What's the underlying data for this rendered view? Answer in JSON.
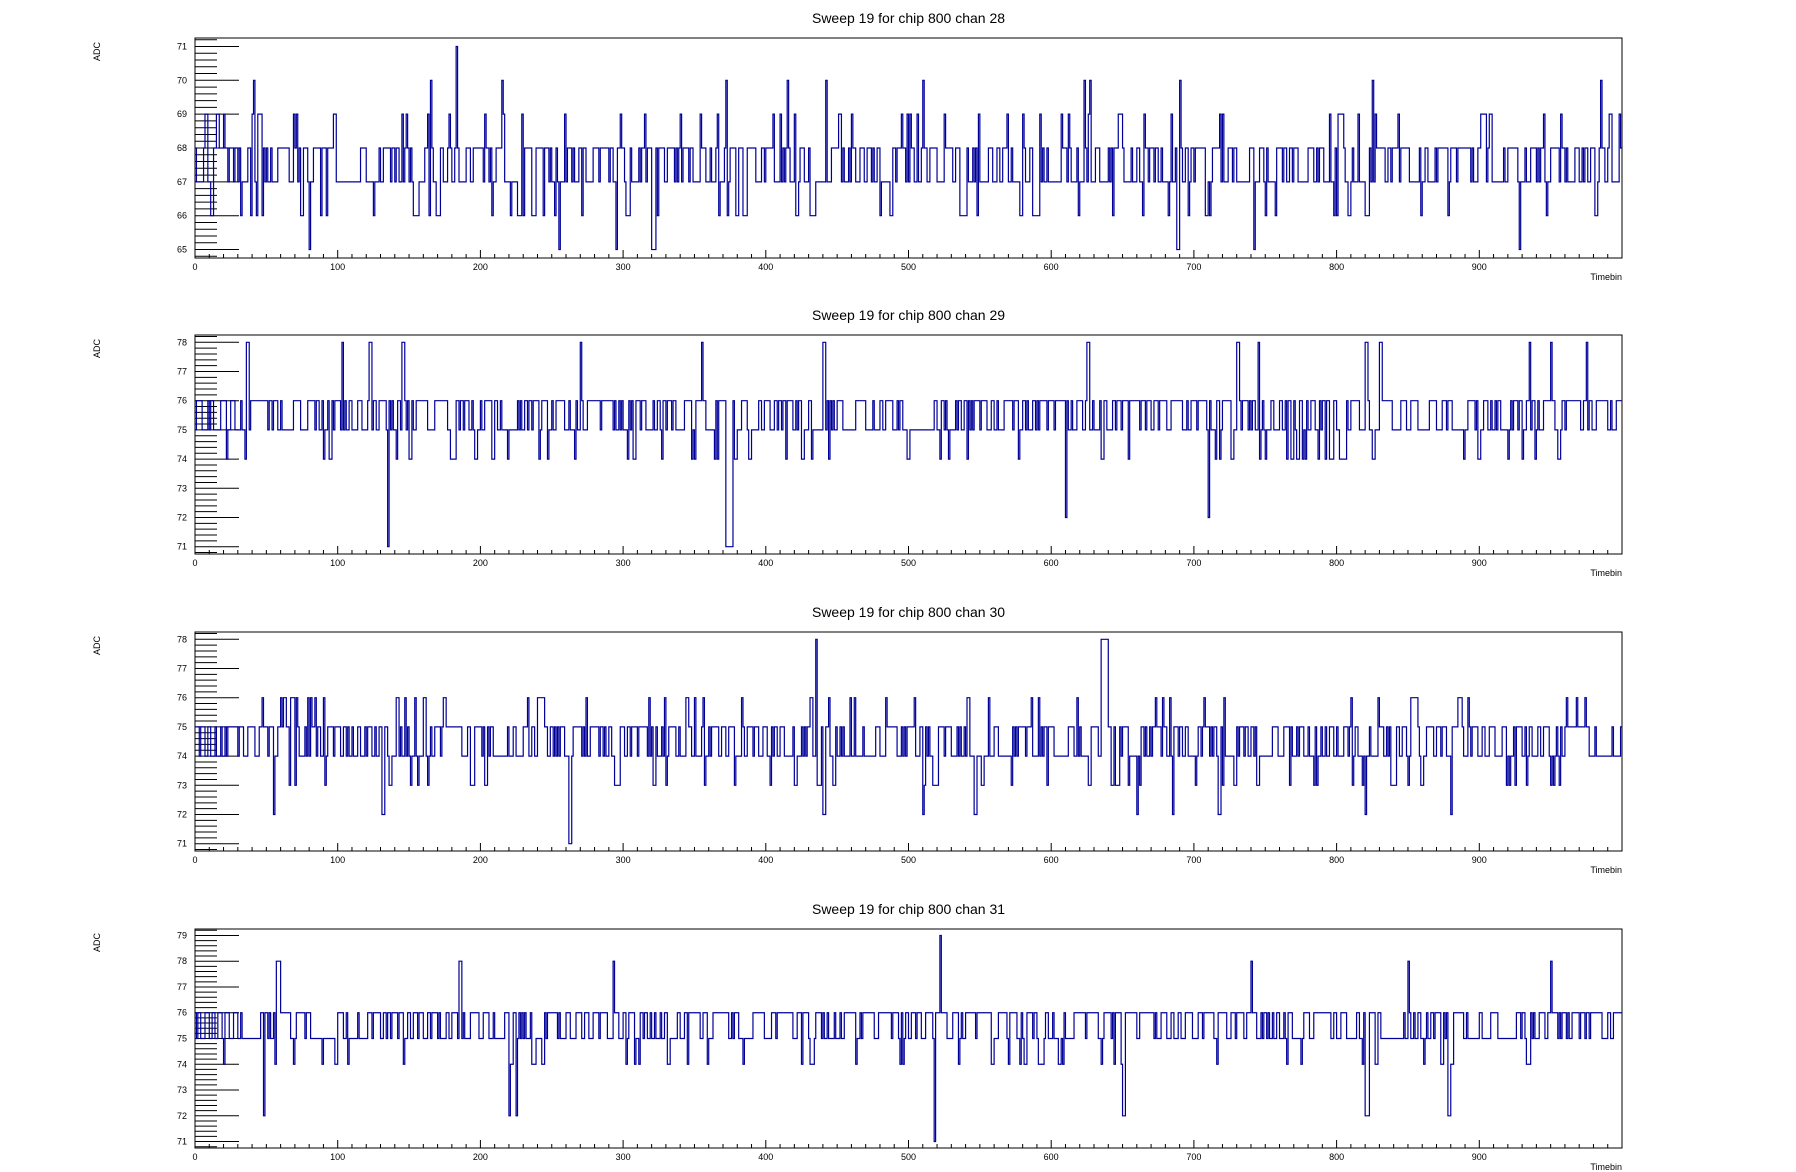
{
  "chart_data": [
    {
      "type": "line",
      "title": "Sweep 19 for chip 800 chan 28",
      "xlabel": "Timebin",
      "ylabel": "ADC",
      "xlim": [
        0,
        1000
      ],
      "ylim": [
        64.75,
        71.25
      ],
      "xticks": [
        "0",
        "100",
        "200",
        "300",
        "400",
        "500",
        "600",
        "700",
        "800",
        "900"
      ],
      "yticks": [
        "65",
        "66",
        "67",
        "68",
        "69",
        "70",
        "71"
      ],
      "series": [
        {
          "color": "#000099",
          "baseline": 67.5,
          "range": [
            65,
            71
          ],
          "spikes": [
            [
              41,
              70
            ],
            [
              80,
              65
            ],
            [
              165,
              70
            ],
            [
              183,
              71
            ],
            [
              215,
              70
            ],
            [
              255,
              65
            ],
            [
              295,
              65
            ],
            [
              320,
              65
            ],
            [
              372,
              70
            ],
            [
              415,
              70
            ],
            [
              442,
              70
            ],
            [
              510,
              70
            ],
            [
              623,
              70
            ],
            [
              627,
              70
            ],
            [
              688,
              65
            ],
            [
              690,
              70
            ],
            [
              742,
              65
            ],
            [
              825,
              70
            ],
            [
              928,
              65
            ],
            [
              985,
              70
            ]
          ]
        }
      ]
    },
    {
      "type": "line",
      "title": "Sweep 19 for chip 800 chan 29",
      "xlabel": "Timebin",
      "ylabel": "ADC",
      "xlim": [
        0,
        1000
      ],
      "ylim": [
        70.75,
        78.25
      ],
      "xticks": [
        "0",
        "100",
        "200",
        "300",
        "400",
        "500",
        "600",
        "700",
        "800",
        "900"
      ],
      "yticks": [
        "71",
        "72",
        "73",
        "74",
        "75",
        "76",
        "77",
        "78"
      ],
      "series": [
        {
          "color": "#000099",
          "baseline": 75,
          "range": [
            71,
            78
          ],
          "spikes": [
            [
              36,
              78
            ],
            [
              103,
              78
            ],
            [
              122,
              78
            ],
            [
              135,
              71
            ],
            [
              145,
              78
            ],
            [
              270,
              78
            ],
            [
              355,
              78
            ],
            [
              372,
              71
            ],
            [
              440,
              78
            ],
            [
              610,
              72
            ],
            [
              625,
              78
            ],
            [
              710,
              72
            ],
            [
              730,
              78
            ],
            [
              745,
              78
            ],
            [
              820,
              78
            ],
            [
              830,
              78
            ],
            [
              935,
              78
            ],
            [
              950,
              78
            ],
            [
              975,
              78
            ]
          ]
        }
      ]
    },
    {
      "type": "line",
      "title": "Sweep 19 for chip 800 chan 30",
      "xlabel": "Timebin",
      "ylabel": "ADC",
      "xlim": [
        0,
        1000
      ],
      "ylim": [
        70.75,
        78.25
      ],
      "xticks": [
        "0",
        "100",
        "200",
        "300",
        "400",
        "500",
        "600",
        "700",
        "800",
        "900"
      ],
      "yticks": [
        "71",
        "72",
        "73",
        "74",
        "75",
        "76",
        "77",
        "78"
      ],
      "series": [
        {
          "color": "#000099",
          "baseline": 74.6,
          "range": [
            71,
            78
          ],
          "spikes": [
            [
              55,
              72
            ],
            [
              131,
              72
            ],
            [
              262,
              71
            ],
            [
              435,
              78
            ],
            [
              440,
              72
            ],
            [
              510,
              72
            ],
            [
              546,
              72
            ],
            [
              635,
              78
            ],
            [
              660,
              72
            ],
            [
              685,
              72
            ],
            [
              717,
              72
            ],
            [
              820,
              72
            ],
            [
              880,
              72
            ]
          ]
        }
      ]
    },
    {
      "type": "line",
      "title": "Sweep 19 for chip 800 chan 31",
      "xlabel": "Timebin",
      "ylabel": "ADC",
      "xlim": [
        0,
        1000
      ],
      "ylim": [
        70.75,
        79.25
      ],
      "xticks": [
        "0",
        "100",
        "200",
        "300",
        "400",
        "500",
        "600",
        "700",
        "800",
        "900"
      ],
      "yticks": [
        "71",
        "72",
        "73",
        "74",
        "75",
        "76",
        "77",
        "78",
        "79"
      ],
      "series": [
        {
          "color": "#000099",
          "baseline": 75,
          "range": [
            71,
            79
          ],
          "spikes": [
            [
              48,
              72
            ],
            [
              57,
              78
            ],
            [
              185,
              78
            ],
            [
              220,
              72
            ],
            [
              225,
              72
            ],
            [
              293,
              78
            ],
            [
              518,
              71
            ],
            [
              522,
              79
            ],
            [
              650,
              72
            ],
            [
              740,
              78
            ],
            [
              820,
              72
            ],
            [
              850,
              78
            ],
            [
              878,
              72
            ],
            [
              950,
              78
            ]
          ]
        }
      ]
    }
  ]
}
